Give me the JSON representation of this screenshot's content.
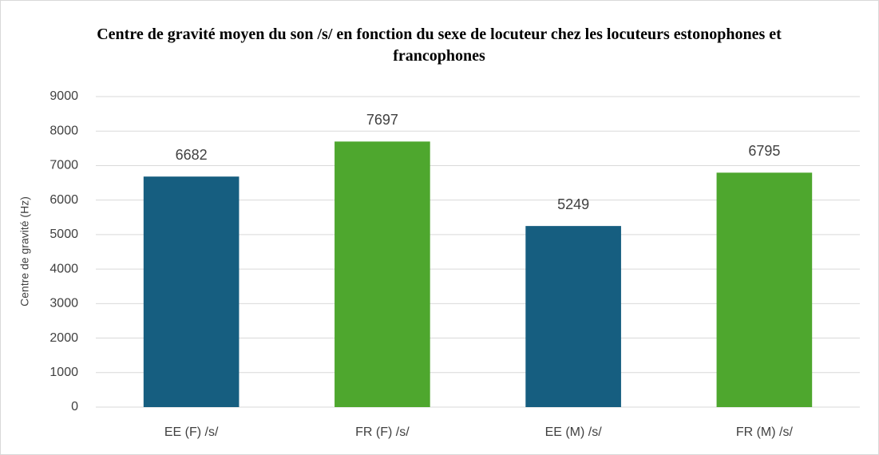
{
  "chart_data": {
    "type": "bar",
    "title": "Centre de gravité moyen du son /s/ en fonction du sexe de locuteur chez les locuteurs estonophones et francophones",
    "y_label": "Centre de gravité (Hz)",
    "categories": [
      "EE (F) /s/",
      "FR (F) /s/",
      "EE (M) /s/",
      "FR (M) /s/"
    ],
    "values": [
      6682,
      7697,
      5249,
      6795
    ],
    "colors": [
      "#165e80",
      "#4ea72e",
      "#165e80",
      "#4ea72e"
    ],
    "ylim": [
      0,
      9000
    ],
    "yticks": [
      0,
      1000,
      2000,
      3000,
      4000,
      5000,
      6000,
      7000,
      8000,
      9000
    ],
    "grid": true
  }
}
